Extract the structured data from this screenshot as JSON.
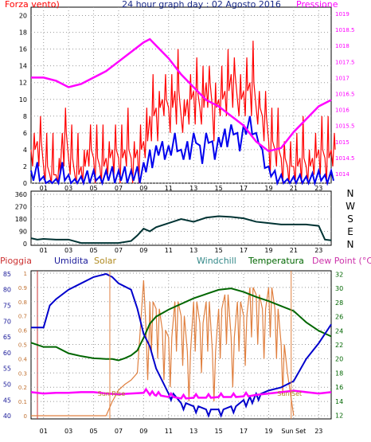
{
  "title": "24 hour graph day : 02 Agosto 2016",
  "x_ticks": [
    "01",
    "03",
    "05",
    "07",
    "09",
    "11",
    "13",
    "15",
    "17",
    "19",
    "21",
    "23"
  ],
  "panel1": {
    "left_label": "Forza vento)",
    "right_label": "Pressione",
    "left_ticks": [
      "0",
      "2",
      "4",
      "6",
      "8",
      "10",
      "12",
      "14",
      "16",
      "18",
      "20"
    ],
    "right_ticks": [
      "1014",
      "1014.5",
      "1015",
      "1015.5",
      "1016",
      "1016.5",
      "1017",
      "1017.5",
      "1018",
      "1018.5",
      "1019"
    ]
  },
  "panel2": {
    "left_ticks": [
      "0",
      "90",
      "180",
      "270",
      "360"
    ],
    "dir_labels": [
      "N",
      "W",
      "S",
      "E",
      "N"
    ]
  },
  "panel3": {
    "labels": [
      "Pioggia",
      "Umidita",
      "Solar",
      "Windchill",
      "Temperatura",
      "Dew Point (°C)"
    ],
    "left_ticks": [
      "40",
      "45",
      "50",
      "55",
      "60",
      "65",
      "70",
      "75",
      "80",
      "85"
    ],
    "inner_ticks": [
      "0",
      "0.1",
      "0.2",
      "0.3",
      "0.4",
      "0.5",
      "0.6",
      "0.7",
      "0.8",
      "0.9",
      "1"
    ],
    "right_ticks": [
      "12",
      "14",
      "16",
      "18",
      "20",
      "22",
      "24",
      "26",
      "28",
      "30",
      "32"
    ],
    "sunrise_label": "Sun Rise",
    "sunset_label": "Sun Set",
    "x_ticks": [
      "01",
      "03",
      "05",
      "07",
      "09",
      "11",
      "13",
      "15",
      "17",
      "19",
      "Sun Set",
      "23"
    ]
  },
  "colors": {
    "gust": "#ff0000",
    "wind": "#0000ee",
    "pressure": "#ff00ff",
    "direction": "#003333",
    "humidity": "#0000cc",
    "solar": "#e08040",
    "temperature": "#006600",
    "dewpoint": "#ff00ff",
    "rain": "#cc3333"
  },
  "chart_data": [
    {
      "type": "line",
      "title": "24 hour graph day : 02 Agosto 2016",
      "xlabel": "",
      "ylabel": "Forza vento)",
      "y2label": "Pressione",
      "xlim": [
        0,
        24
      ],
      "ylim": [
        0,
        21
      ],
      "y2lim": [
        1013.7,
        1019.2
      ],
      "series": [
        {
          "name": "Forza vento)",
          "axis": "left",
          "x": [
            0,
            0.5,
            1,
            1.5,
            2,
            2.5,
            3,
            3.5,
            4,
            4.5,
            5,
            5.5,
            6,
            6.5,
            7,
            7.5,
            8,
            8.5,
            9,
            9.5,
            10,
            10.5,
            11,
            11.5,
            12,
            12.5,
            13,
            13.5,
            14,
            14.5,
            15,
            15.5,
            16,
            16.5,
            17,
            17.5,
            18,
            18.5,
            19,
            19.5,
            20,
            20.5,
            21,
            21.5,
            22,
            22.5,
            23,
            23.5,
            24
          ],
          "y": [
            4,
            5,
            2,
            1,
            1,
            6,
            3,
            1,
            2,
            4,
            3,
            2,
            3,
            4,
            3,
            4,
            3,
            4,
            5,
            8,
            9,
            10,
            9,
            11,
            8,
            10,
            11,
            9,
            12,
            9,
            10,
            11,
            13,
            10,
            11,
            12,
            9,
            8,
            5,
            4,
            3,
            2,
            2,
            3,
            2,
            3,
            4,
            3,
            4
          ]
        },
        {
          "name": "",
          "axis": "left",
          "x": [
            0,
            0.5,
            1,
            1.5,
            2,
            2.5,
            3,
            3.5,
            4,
            4.5,
            5,
            5.5,
            6,
            6.5,
            7,
            7.5,
            8,
            8.5,
            9,
            9.5,
            10,
            10.5,
            11,
            11.5,
            12,
            12.5,
            13,
            13.5,
            14,
            14.5,
            15,
            15.5,
            16,
            16.5,
            17,
            17.5,
            18,
            18.5,
            19,
            19.5,
            20,
            20.5,
            21,
            21.5,
            22,
            22.5,
            23,
            23.5,
            24
          ],
          "y": [
            1.5,
            2.5,
            0.8,
            0.3,
            0.5,
            2.5,
            1,
            0.5,
            0.8,
            1.5,
            1.5,
            0.8,
            1.5,
            2,
            1.5,
            2,
            1.5,
            2,
            2.5,
            4,
            4.5,
            5,
            4.5,
            6,
            4,
            5,
            6,
            4.5,
            6,
            5,
            5.5,
            6.5,
            7,
            6,
            7,
            8,
            6,
            4,
            2,
            1.5,
            1,
            0.5,
            0.8,
            1,
            0.8,
            1.2,
            1.5,
            1,
            1.5
          ]
        },
        {
          "name": "Pressione",
          "axis": "right",
          "x": [
            0,
            1,
            2,
            3,
            4,
            5,
            6,
            7,
            8,
            9,
            9.5,
            10,
            11,
            12,
            13,
            14,
            15,
            16,
            17,
            18,
            19,
            20,
            21,
            22,
            23,
            24
          ],
          "y": [
            1017.0,
            1017.0,
            1016.9,
            1016.7,
            1016.8,
            1017.0,
            1017.2,
            1017.5,
            1017.8,
            1018.1,
            1018.2,
            1018.0,
            1017.6,
            1017.1,
            1016.7,
            1016.3,
            1016.1,
            1015.8,
            1015.5,
            1015.0,
            1014.7,
            1014.8,
            1015.3,
            1015.7,
            1016.1,
            1016.3
          ]
        }
      ]
    },
    {
      "type": "line",
      "xlim": [
        0,
        24
      ],
      "ylim": [
        0,
        360
      ],
      "series": [
        {
          "name": "",
          "x": [
            0,
            0.5,
            1,
            2,
            3,
            4,
            5,
            6,
            7,
            8,
            8.5,
            9,
            9.5,
            10,
            11,
            12,
            13,
            14,
            15,
            16,
            17,
            18,
            19,
            20,
            21,
            22,
            23,
            23.5,
            24
          ],
          "y": [
            40,
            30,
            35,
            30,
            30,
            5,
            5,
            5,
            5,
            20,
            60,
            110,
            90,
            120,
            150,
            180,
            160,
            190,
            200,
            195,
            185,
            160,
            150,
            140,
            140,
            140,
            130,
            30,
            25
          ]
        }
      ]
    },
    {
      "type": "line",
      "xlim": [
        0,
        24
      ],
      "ylim": [
        39,
        86
      ],
      "y2lim": [
        11.5,
        32.5
      ],
      "series": [
        {
          "name": "Umidita",
          "axis": "left",
          "x": [
            0,
            1,
            1.5,
            2,
            3,
            4,
            5,
            6,
            6.5,
            7,
            8,
            8.5,
            9,
            9.5,
            10,
            11,
            12,
            13,
            14,
            15,
            16,
            17,
            17.5,
            18,
            19,
            20,
            21,
            22,
            23,
            24
          ],
          "y": [
            68,
            68,
            75,
            77,
            80,
            82,
            84,
            85,
            84,
            82,
            80,
            74,
            66,
            62,
            55,
            47,
            44,
            43,
            42,
            42,
            43,
            45,
            46,
            47,
            48,
            49,
            51,
            58,
            63,
            69
          ]
        },
        {
          "name": "Temperatura",
          "axis": "right",
          "x": [
            0,
            1,
            2,
            3,
            4,
            5,
            6,
            6.5,
            7,
            7.5,
            8,
            8.5,
            9,
            9.5,
            10,
            11,
            12,
            13,
            14,
            15,
            16,
            17,
            18,
            19,
            20,
            21,
            22,
            23,
            24
          ],
          "y": [
            22.3,
            21.7,
            21.7,
            20.8,
            20.4,
            20.1,
            20,
            20,
            19.8,
            20.1,
            20.5,
            21.2,
            23,
            25,
            26,
            27,
            27.8,
            28.6,
            29.2,
            29.8,
            30,
            29.5,
            28.8,
            28.2,
            27.5,
            26.8,
            25.2,
            24,
            23.2
          ]
        },
        {
          "name": "Dew Point (°C)",
          "axis": "right",
          "x": [
            0,
            1,
            2,
            3,
            4,
            5,
            6,
            7,
            8,
            9,
            9.5,
            10,
            11,
            12,
            13,
            14,
            15,
            16,
            17,
            18,
            19,
            20,
            21,
            22,
            23,
            24
          ],
          "y": [
            15.3,
            15.1,
            15.2,
            15.2,
            15.3,
            15.3,
            15.1,
            15,
            15.1,
            15.2,
            14.9,
            14.8,
            14.6,
            14.4,
            14.5,
            14.5,
            14.6,
            14.6,
            14.7,
            14.9,
            15.1,
            15.3,
            15.5,
            15.3,
            15.1,
            15.3
          ]
        },
        {
          "name": "Solar",
          "axis": "inner",
          "ylim": [
            0,
            1
          ],
          "x": [
            0,
            5,
            6,
            6.5,
            7,
            7.5,
            8,
            8.5,
            9,
            9.2,
            9.5,
            10,
            10.5,
            11,
            11.5,
            12,
            12.5,
            13,
            13.5,
            14,
            14.5,
            15,
            15.5,
            16,
            16.5,
            17,
            17.5,
            18,
            18.5,
            19,
            19.5,
            20,
            20.5,
            21
          ],
          "y": [
            0,
            0,
            0,
            0.1,
            0.18,
            0.22,
            0.25,
            0.3,
            0.95,
            0.6,
            0.8,
            0.75,
            0.6,
            0.55,
            0.8,
            0.7,
            0.45,
            0.8,
            0.65,
            0.8,
            0.45,
            0.75,
            0.85,
            0.55,
            0.8,
            0.7,
            0.9,
            0.85,
            0.75,
            0.9,
            0.75,
            0.5,
            0.3,
            0
          ]
        }
      ]
    }
  ]
}
